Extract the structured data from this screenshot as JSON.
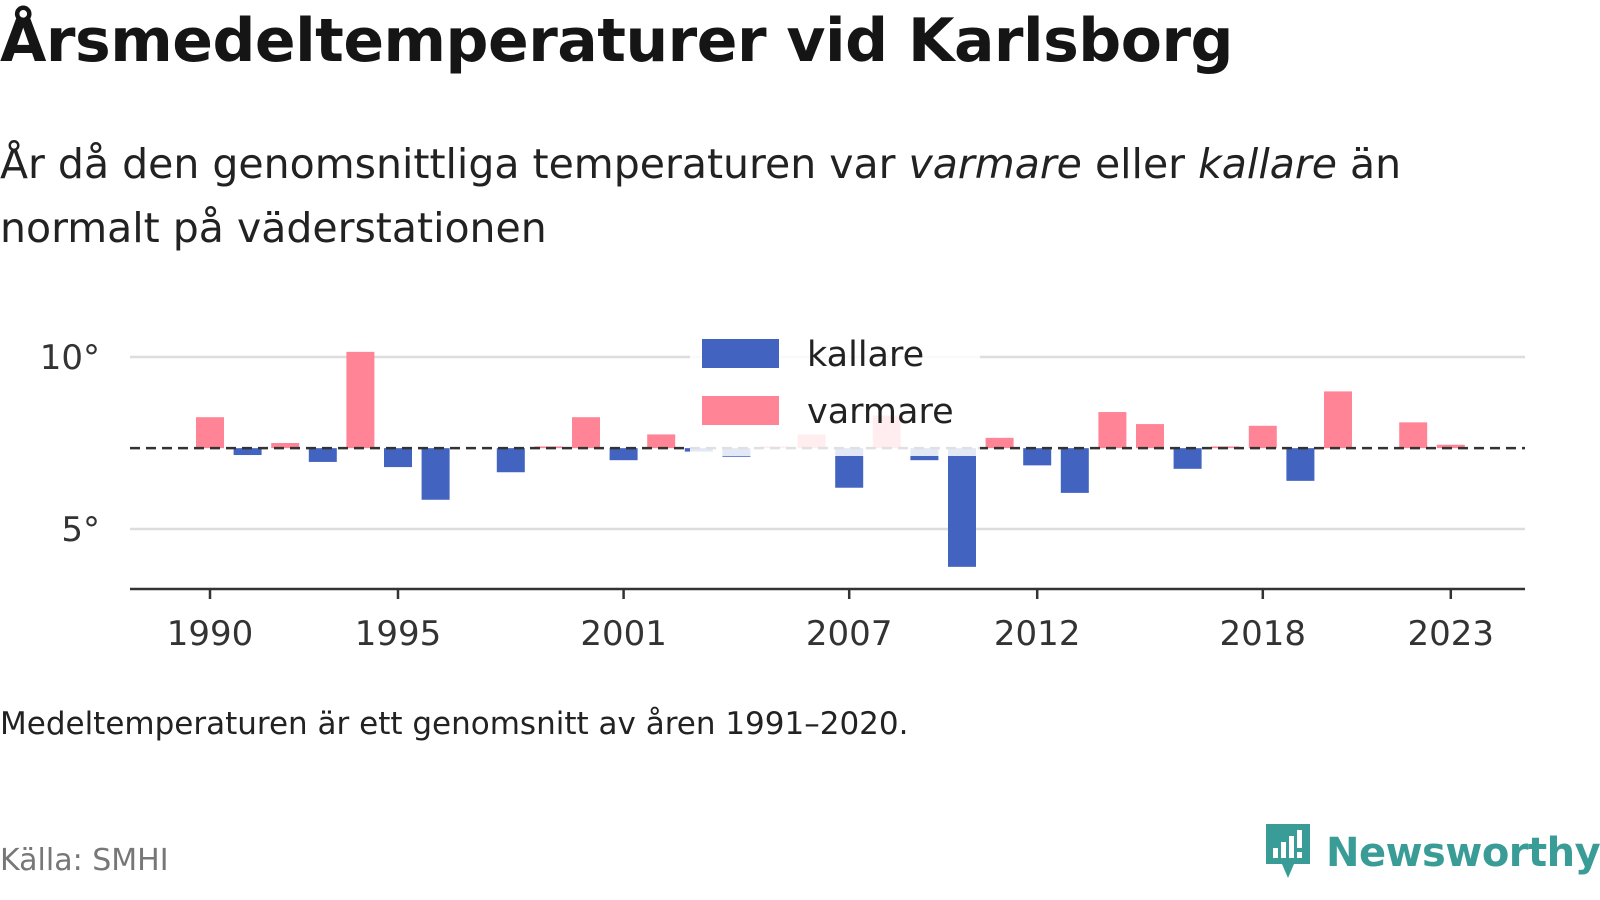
{
  "header": {
    "title": "Årsmedeltemperaturer vid Karlsborg",
    "subtitle_part1": "År då den genomsnittliga temperaturen var ",
    "subtitle_warm": "varmare",
    "subtitle_part2": " eller ",
    "subtitle_cold": "kallare",
    "subtitle_part3": " än normalt på väderstationen"
  },
  "footer": {
    "note": "Medeltemperaturen är ett genomsnitt av åren 1991–2020.",
    "source": "Källa: SMHI",
    "brand": "Newsworthy"
  },
  "colors": {
    "colder": "#4263bf",
    "warmer": "#ff8596",
    "brand": "#3a9c96"
  },
  "chart_data": {
    "type": "bar",
    "baseline": 7.35,
    "baseline_style": "dashed",
    "ylim": [
      3.3,
      10.6
    ],
    "yticks": [
      5,
      10
    ],
    "ytick_labels": [
      "5°",
      "10°"
    ],
    "xticks": [
      1990,
      1995,
      2001,
      2007,
      2012,
      2018,
      2023
    ],
    "xtick_labels": [
      "1990",
      "1995",
      "2001",
      "2007",
      "2012",
      "2018",
      "2023"
    ],
    "grid": true,
    "legend": {
      "position": "top-center",
      "entries": [
        {
          "label": "kallare",
          "color": "#4263bf"
        },
        {
          "label": "varmare",
          "color": "#ff8596"
        }
      ]
    },
    "series": [
      {
        "name": "kallare",
        "color": "#4263bf"
      },
      {
        "name": "varmare",
        "color": "#ff8596"
      }
    ],
    "years": [
      1990,
      1991,
      1992,
      1993,
      1994,
      1995,
      1996,
      1997,
      1998,
      1999,
      2000,
      2001,
      2002,
      2003,
      2004,
      2005,
      2006,
      2007,
      2008,
      2009,
      2010,
      2011,
      2012,
      2013,
      2014,
      2015,
      2016,
      2017,
      2018,
      2019,
      2020,
      2021,
      2022,
      2023
    ],
    "values": [
      8.25,
      7.15,
      7.5,
      6.95,
      10.15,
      6.8,
      5.85,
      null,
      6.65,
      7.4,
      8.25,
      7.0,
      7.75,
      7.25,
      7.1,
      7.4,
      7.75,
      6.2,
      8.3,
      7.0,
      3.9,
      7.65,
      6.85,
      6.05,
      8.4,
      8.05,
      6.75,
      7.4,
      8.0,
      6.4,
      9.0,
      null,
      8.1,
      7.45
    ]
  }
}
